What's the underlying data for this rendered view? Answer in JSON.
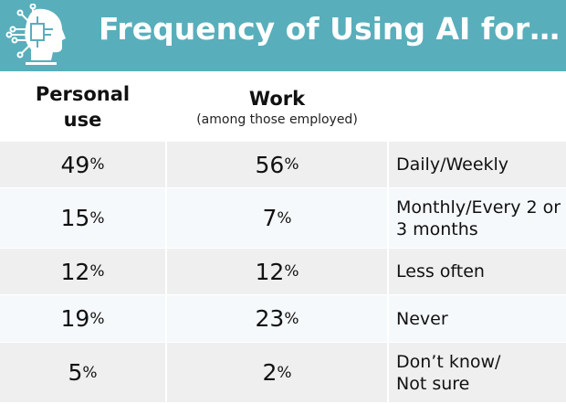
{
  "title": "Frequency of Using AI for…",
  "icon": "ai-head-circuit-icon",
  "colors": {
    "banner": "#59aebb",
    "row_shade": "#efefef",
    "row_light": "#f5f9fb"
  },
  "chart_data": {
    "type": "table",
    "title": "Frequency of Using AI for…",
    "columns": [
      {
        "label": "Personal use",
        "sublabel": ""
      },
      {
        "label": "Work",
        "sublabel": "(among those employed)"
      }
    ],
    "unit": "%",
    "rows": [
      {
        "category": "Daily/Weekly",
        "values": [
          49,
          56
        ]
      },
      {
        "category": "Monthly/Every 2 or 3 months",
        "values": [
          15,
          7
        ]
      },
      {
        "category": "Less often",
        "values": [
          12,
          12
        ]
      },
      {
        "category": "Never",
        "values": [
          19,
          23
        ]
      },
      {
        "category": "Don’t know/ Not sure",
        "values": [
          5,
          2
        ]
      }
    ]
  }
}
